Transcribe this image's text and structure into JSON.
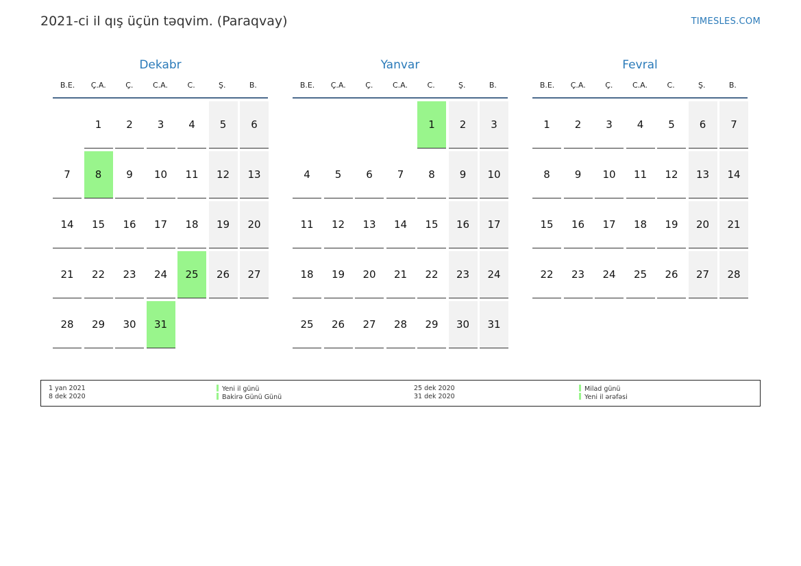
{
  "header": {
    "title": "2021-ci il qış üçün təqvim. (Paraqvay)",
    "brand": "TIMESLES.COM"
  },
  "weekdays": [
    "B.E.",
    "Ç.A.",
    "Ç.",
    "C.A.",
    "C.",
    "Ş.",
    "B."
  ],
  "months": [
    {
      "name": "Dekabr",
      "weeks": [
        [
          "",
          "1",
          "2",
          "3",
          "4",
          "5",
          "6"
        ],
        [
          "7",
          "8",
          "9",
          "10",
          "11",
          "12",
          "13"
        ],
        [
          "14",
          "15",
          "16",
          "17",
          "18",
          "19",
          "20"
        ],
        [
          "21",
          "22",
          "23",
          "24",
          "25",
          "26",
          "27"
        ],
        [
          "28",
          "29",
          "30",
          "31",
          "",
          "",
          ""
        ]
      ],
      "holidays": [
        "8",
        "25",
        "31"
      ]
    },
    {
      "name": "Yanvar",
      "weeks": [
        [
          "",
          "",
          "",
          "",
          "1",
          "2",
          "3"
        ],
        [
          "4",
          "5",
          "6",
          "7",
          "8",
          "9",
          "10"
        ],
        [
          "11",
          "12",
          "13",
          "14",
          "15",
          "16",
          "17"
        ],
        [
          "18",
          "19",
          "20",
          "21",
          "22",
          "23",
          "24"
        ],
        [
          "25",
          "26",
          "27",
          "28",
          "29",
          "30",
          "31"
        ]
      ],
      "holidays": [
        "1"
      ]
    },
    {
      "name": "Fevral",
      "weeks": [
        [
          "1",
          "2",
          "3",
          "4",
          "5",
          "6",
          "7"
        ],
        [
          "8",
          "9",
          "10",
          "11",
          "12",
          "13",
          "14"
        ],
        [
          "15",
          "16",
          "17",
          "18",
          "19",
          "20",
          "21"
        ],
        [
          "22",
          "23",
          "24",
          "25",
          "26",
          "27",
          "28"
        ]
      ],
      "holidays": []
    }
  ],
  "legend": [
    {
      "date": "1 yan 2021",
      "name": "Yeni il günü"
    },
    {
      "date": "8 dek 2020",
      "name": "Bakirə Günü Günü"
    },
    {
      "date": "25 dek 2020",
      "name": "Milad günü"
    },
    {
      "date": "31 dek 2020",
      "name": "Yeni il ərəfəsi"
    }
  ],
  "colors": {
    "holiday": "#99f58c",
    "weekend": "#f2f2f2",
    "accent": "#2a7ab9"
  }
}
